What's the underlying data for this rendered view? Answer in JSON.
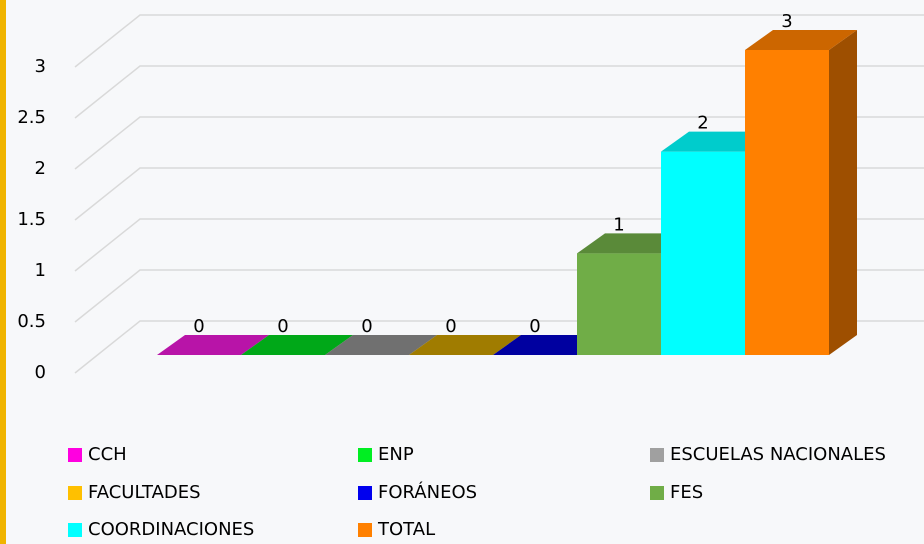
{
  "chart_data": {
    "type": "bar3d",
    "categories": [
      "CCH",
      "ENP",
      "ESCUELAS NACIONALES",
      "FACULTADES",
      "FORÁNEOS",
      "FES",
      "COORDINACIONES",
      "TOTAL"
    ],
    "values": [
      0,
      0,
      0,
      0,
      0,
      1,
      2,
      3
    ],
    "colors": [
      "#e619d2",
      "#00d21e",
      "#8c8c8c",
      "#c89b00",
      "#0000c8",
      "#70ad47",
      "#00ffff",
      "#ff8000"
    ],
    "legend_colors": [
      "#ff00e0",
      "#00ee22",
      "#a0a0a0",
      "#ffc000",
      "#0000ee",
      "#70ad47",
      "#00ffff",
      "#ff8000"
    ],
    "ylim": [
      0,
      3
    ],
    "yticks": [
      0,
      0.5,
      1,
      1.5,
      2,
      2.5,
      3
    ],
    "grid": true,
    "legend": "bottom"
  }
}
